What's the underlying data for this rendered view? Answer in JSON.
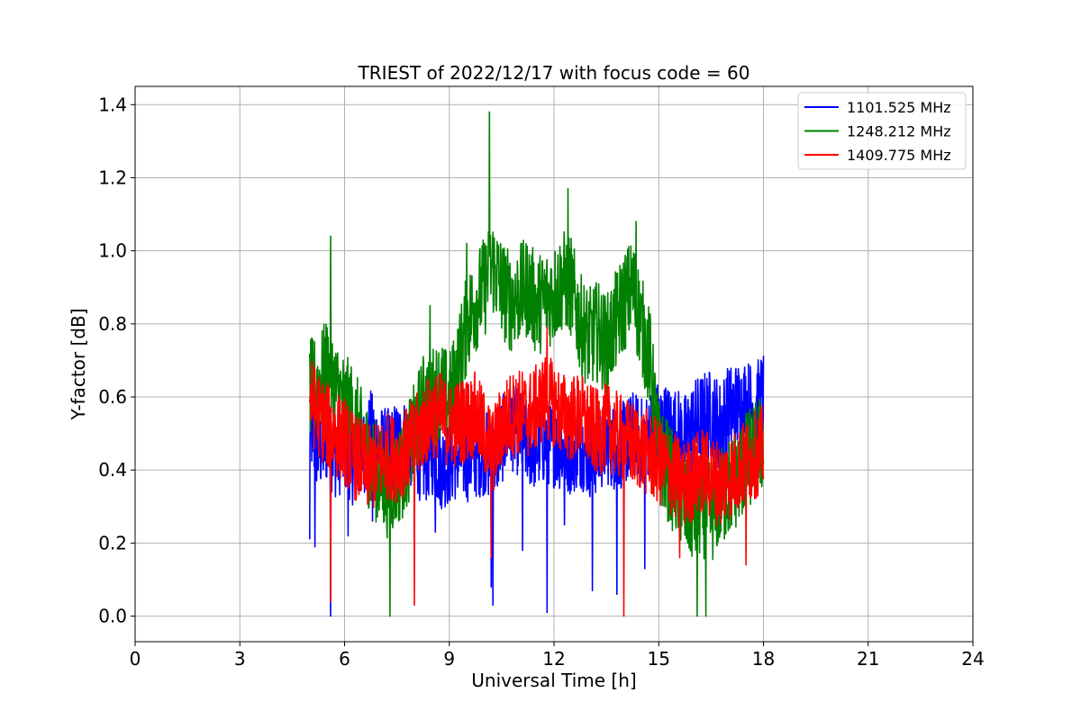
{
  "chart_data": {
    "type": "line",
    "title": "TRIEST of 2022/12/17 with focus code = 60",
    "xlabel": "Universal Time [h]",
    "ylabel": "Y-factor [dB]",
    "xlim": [
      0,
      24
    ],
    "ylim": [
      -0.07,
      1.45
    ],
    "xticks": [
      0,
      3,
      6,
      9,
      12,
      15,
      18,
      21,
      24
    ],
    "xtick_labels": [
      "0",
      "3",
      "6",
      "9",
      "12",
      "15",
      "18",
      "21",
      "24"
    ],
    "yticks": [
      0.0,
      0.2,
      0.4,
      0.6,
      0.8,
      1.0,
      1.2,
      1.4
    ],
    "ytick_labels": [
      "0.0",
      "0.2",
      "0.4",
      "0.6",
      "0.8",
      "1.0",
      "1.2",
      "1.4"
    ],
    "grid": true,
    "legend_position": "top-right",
    "series": [
      {
        "name": "1101.525 MHz",
        "color": "#0000ff",
        "x": [
          5.0,
          5.25,
          5.5,
          5.75,
          6.0,
          6.25,
          6.5,
          6.75,
          7.0,
          7.25,
          7.5,
          7.75,
          8.0,
          8.25,
          8.5,
          8.75,
          9.0,
          9.25,
          9.5,
          9.75,
          10.0,
          10.25,
          10.5,
          10.75,
          11.0,
          11.25,
          11.5,
          11.75,
          12.0,
          12.25,
          12.5,
          12.75,
          13.0,
          13.25,
          13.5,
          13.75,
          14.0,
          14.25,
          14.5,
          14.75,
          15.0,
          15.25,
          15.5,
          15.75,
          16.0,
          16.25,
          16.5,
          16.75,
          17.0,
          17.25,
          17.5,
          17.75,
          18.0
        ],
        "y": [
          0.52,
          0.45,
          0.48,
          0.44,
          0.46,
          0.42,
          0.44,
          0.5,
          0.46,
          0.45,
          0.47,
          0.48,
          0.46,
          0.42,
          0.45,
          0.41,
          0.42,
          0.44,
          0.43,
          0.44,
          0.45,
          0.42,
          0.48,
          0.52,
          0.5,
          0.47,
          0.46,
          0.48,
          0.47,
          0.46,
          0.45,
          0.47,
          0.44,
          0.45,
          0.48,
          0.46,
          0.47,
          0.5,
          0.48,
          0.5,
          0.52,
          0.51,
          0.5,
          0.48,
          0.52,
          0.54,
          0.55,
          0.52,
          0.56,
          0.57,
          0.58,
          0.56,
          0.6
        ],
        "spread": [
          0.12,
          0.12,
          0.12,
          0.12,
          0.12,
          0.12,
          0.12,
          0.12,
          0.12,
          0.12,
          0.12,
          0.12,
          0.12,
          0.12,
          0.12,
          0.12,
          0.12,
          0.12,
          0.12,
          0.12,
          0.12,
          0.12,
          0.12,
          0.12,
          0.12,
          0.12,
          0.12,
          0.12,
          0.12,
          0.12,
          0.12,
          0.12,
          0.12,
          0.12,
          0.12,
          0.12,
          0.12,
          0.12,
          0.12,
          0.12,
          0.13,
          0.13,
          0.13,
          0.13,
          0.13,
          0.13,
          0.13,
          0.13,
          0.13,
          0.13,
          0.13,
          0.13,
          0.13
        ],
        "dips": [
          [
            5.0,
            0.21
          ],
          [
            5.15,
            0.19
          ],
          [
            5.6,
            0.0
          ],
          [
            6.1,
            0.22
          ],
          [
            6.8,
            0.26
          ],
          [
            8.6,
            0.23
          ],
          [
            10.2,
            0.08
          ],
          [
            10.25,
            0.03
          ],
          [
            11.1,
            0.18
          ],
          [
            11.8,
            0.01
          ],
          [
            12.3,
            0.25
          ],
          [
            13.1,
            0.07
          ],
          [
            13.8,
            0.06
          ],
          [
            14.6,
            0.13
          ],
          [
            16.3,
            0.18
          ]
        ]
      },
      {
        "name": "1248.212 MHz",
        "color": "#008000",
        "x": [
          5.0,
          5.25,
          5.5,
          5.75,
          6.0,
          6.25,
          6.5,
          6.75,
          7.0,
          7.25,
          7.5,
          7.75,
          8.0,
          8.25,
          8.5,
          8.75,
          9.0,
          9.25,
          9.5,
          9.75,
          10.0,
          10.25,
          10.5,
          10.75,
          11.0,
          11.25,
          11.5,
          11.75,
          12.0,
          12.25,
          12.5,
          12.75,
          13.0,
          13.25,
          13.5,
          13.75,
          14.0,
          14.25,
          14.5,
          14.75,
          15.0,
          15.25,
          15.5,
          15.75,
          16.0,
          16.25,
          16.5,
          16.75,
          17.0,
          17.25,
          17.5,
          17.75,
          18.0
        ],
        "y": [
          0.62,
          0.63,
          0.68,
          0.62,
          0.58,
          0.55,
          0.48,
          0.42,
          0.38,
          0.35,
          0.38,
          0.42,
          0.5,
          0.58,
          0.6,
          0.62,
          0.58,
          0.68,
          0.8,
          0.86,
          0.9,
          0.96,
          0.9,
          0.86,
          0.88,
          0.9,
          0.85,
          0.87,
          0.88,
          0.92,
          0.9,
          0.8,
          0.76,
          0.78,
          0.74,
          0.8,
          0.86,
          0.9,
          0.8,
          0.7,
          0.45,
          0.4,
          0.35,
          0.3,
          0.28,
          0.3,
          0.28,
          0.32,
          0.35,
          0.38,
          0.42,
          0.45,
          0.48
        ],
        "spread": [
          0.14,
          0.14,
          0.14,
          0.14,
          0.14,
          0.14,
          0.14,
          0.14,
          0.14,
          0.14,
          0.14,
          0.14,
          0.14,
          0.14,
          0.14,
          0.14,
          0.14,
          0.14,
          0.14,
          0.14,
          0.14,
          0.14,
          0.14,
          0.14,
          0.14,
          0.14,
          0.14,
          0.14,
          0.14,
          0.14,
          0.14,
          0.14,
          0.14,
          0.14,
          0.14,
          0.14,
          0.14,
          0.14,
          0.14,
          0.14,
          0.14,
          0.14,
          0.14,
          0.14,
          0.14,
          0.14,
          0.14,
          0.14,
          0.14,
          0.14,
          0.14,
          0.14,
          0.14
        ],
        "dips": [
          [
            5.6,
            1.04
          ],
          [
            7.3,
            0.0
          ],
          [
            10.15,
            1.38
          ],
          [
            12.4,
            1.17
          ],
          [
            14.35,
            1.08
          ],
          [
            16.1,
            0.0
          ],
          [
            16.35,
            0.0
          ],
          [
            8.45,
            0.85
          ],
          [
            9.5,
            1.02
          ]
        ]
      },
      {
        "name": "1409.775 MHz",
        "color": "#ff0000",
        "x": [
          5.0,
          5.25,
          5.5,
          5.75,
          6.0,
          6.25,
          6.5,
          6.75,
          7.0,
          7.25,
          7.5,
          7.75,
          8.0,
          8.25,
          8.5,
          8.75,
          9.0,
          9.25,
          9.5,
          9.75,
          10.0,
          10.25,
          10.5,
          10.75,
          11.0,
          11.25,
          11.5,
          11.75,
          12.0,
          12.25,
          12.5,
          12.75,
          13.0,
          13.25,
          13.5,
          13.75,
          14.0,
          14.25,
          14.5,
          14.75,
          15.0,
          15.25,
          15.5,
          15.75,
          16.0,
          16.25,
          16.5,
          16.75,
          17.0,
          17.25,
          17.5,
          17.75,
          18.0
        ],
        "y": [
          0.6,
          0.55,
          0.52,
          0.5,
          0.48,
          0.44,
          0.42,
          0.4,
          0.42,
          0.44,
          0.43,
          0.45,
          0.48,
          0.52,
          0.55,
          0.55,
          0.52,
          0.53,
          0.54,
          0.55,
          0.5,
          0.45,
          0.52,
          0.55,
          0.56,
          0.55,
          0.57,
          0.6,
          0.58,
          0.55,
          0.54,
          0.55,
          0.52,
          0.5,
          0.52,
          0.5,
          0.48,
          0.47,
          0.46,
          0.44,
          0.42,
          0.4,
          0.38,
          0.36,
          0.38,
          0.4,
          0.38,
          0.36,
          0.38,
          0.4,
          0.42,
          0.44,
          0.46
        ],
        "spread": [
          0.12,
          0.12,
          0.12,
          0.12,
          0.12,
          0.12,
          0.12,
          0.12,
          0.12,
          0.12,
          0.12,
          0.12,
          0.12,
          0.12,
          0.12,
          0.12,
          0.12,
          0.12,
          0.12,
          0.12,
          0.12,
          0.12,
          0.12,
          0.12,
          0.12,
          0.12,
          0.12,
          0.12,
          0.12,
          0.12,
          0.12,
          0.12,
          0.12,
          0.12,
          0.12,
          0.12,
          0.12,
          0.12,
          0.12,
          0.12,
          0.12,
          0.12,
          0.12,
          0.12,
          0.12,
          0.12,
          0.12,
          0.12,
          0.12,
          0.12,
          0.12,
          0.12,
          0.12
        ],
        "dips": [
          [
            5.6,
            0.04
          ],
          [
            8.0,
            0.03
          ],
          [
            10.2,
            0.16
          ],
          [
            14.0,
            0.0
          ],
          [
            11.8,
            0.79
          ],
          [
            15.6,
            0.16
          ],
          [
            17.5,
            0.14
          ]
        ]
      }
    ]
  }
}
